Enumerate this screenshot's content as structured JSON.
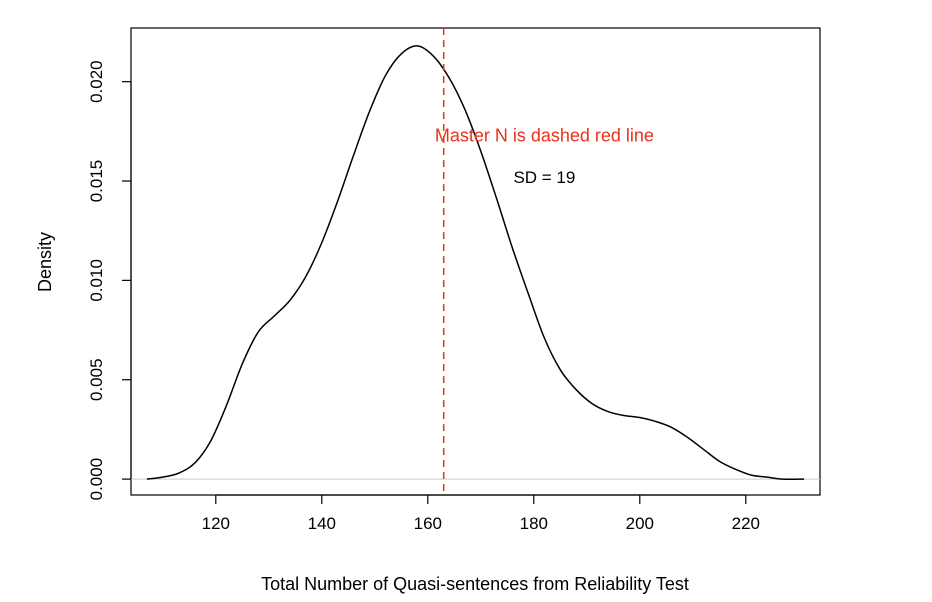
{
  "chart_data": {
    "type": "line",
    "title": "",
    "xlabel": "Total Number of Quasi-sentences from Reliability Test",
    "ylabel": "Density",
    "xlim": [
      104,
      234
    ],
    "ylim": [
      -0.0008,
      0.0227
    ],
    "x_ticks": [
      120,
      140,
      160,
      180,
      200,
      220
    ],
    "x_tick_labels": [
      "120",
      "140",
      "160",
      "180",
      "200",
      "220"
    ],
    "y_ticks": [
      0.0,
      0.005,
      0.01,
      0.015,
      0.02
    ],
    "y_tick_labels": [
      "0.000",
      "0.005",
      "0.010",
      "0.015",
      "0.020"
    ],
    "grid": false,
    "series": [
      {
        "color": "#000000",
        "x": [
          107,
          110,
          113,
          116,
          119,
          122,
          125,
          128,
          131,
          134,
          137,
          140,
          143,
          146,
          149,
          152,
          155,
          158,
          161,
          164,
          167,
          170,
          173,
          176,
          179,
          182,
          185,
          188,
          191,
          194,
          197,
          200,
          203,
          206,
          209,
          212,
          215,
          218,
          221,
          224,
          227,
          231
        ],
        "y": [
          0.0,
          0.0001,
          0.0003,
          0.0008,
          0.0019,
          0.0037,
          0.0058,
          0.0074,
          0.0082,
          0.009,
          0.0102,
          0.0119,
          0.014,
          0.0163,
          0.0185,
          0.0203,
          0.0214,
          0.0218,
          0.0213,
          0.0202,
          0.0186,
          0.0165,
          0.0141,
          0.0116,
          0.0093,
          0.0071,
          0.0055,
          0.0045,
          0.0038,
          0.0034,
          0.0032,
          0.0031,
          0.0029,
          0.0026,
          0.0021,
          0.0015,
          0.0009,
          0.0005,
          0.0002,
          0.0001,
          0.0,
          0.0
        ]
      }
    ],
    "reference_lines": [
      {
        "orientation": "vertical",
        "x": 163,
        "style": "dashed",
        "color": "#e8321e"
      },
      {
        "orientation": "horizontal",
        "y": 0.0,
        "style": "solid",
        "color": "#cccccc"
      }
    ],
    "annotations": [
      {
        "text": "Master N is dashed red line",
        "x": 182,
        "y": 0.017,
        "color": "#e8321e"
      },
      {
        "text": "SD = 19",
        "x": 182,
        "y": 0.0149,
        "color": "#000000"
      }
    ]
  }
}
